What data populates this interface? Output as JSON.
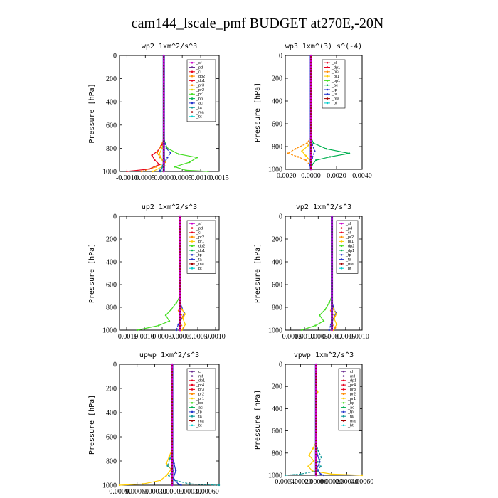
{
  "figure": {
    "title": "cam144_lscale_pmf  BUDGET at270E,-20N"
  },
  "colors": {
    "magenta": "#cc00cc",
    "purple": "#6a2d91",
    "red": "#e8001c",
    "orange": "#ff8c00",
    "gold": "#ffcc00",
    "yellow": "#e6d200",
    "lime": "#44dd22",
    "green": "#00b050",
    "blue": "#2233cc",
    "teal": "#119999",
    "darkred": "#a00000",
    "cyan": "#00cccc",
    "navy": "#000080"
  },
  "chart_data": [
    {
      "type": "line",
      "title": "wp2  1xm^2/s^3",
      "ylabel": "Pressure [hPa]",
      "xlim": [
        -0.0012,
        0.0015
      ],
      "ylim": [
        1000,
        0
      ],
      "xticks": [
        "-0.0010",
        "0.0005",
        "0.0000",
        "0.0005",
        "0.0010",
        "0.0015"
      ],
      "xtick_values": [
        -0.001,
        -0.0005,
        0.0,
        0.0005,
        0.001,
        0.0015
      ],
      "yticks": [
        0,
        200,
        400,
        600,
        800,
        1000
      ],
      "legend": [
        "_sf",
        "_pd",
        "_cl",
        "_dp2",
        "_dp1",
        "_pr3",
        "_pr2",
        "_pr1",
        "_bp",
        "_ac",
        "_ta",
        "_ma",
        "_bt"
      ],
      "legend_colors": [
        "magenta",
        "purple",
        "red",
        "orange",
        "red",
        "orange",
        "yellow",
        "lime",
        "green",
        "blue",
        "teal",
        "darkred",
        "cyan"
      ],
      "series": [
        {
          "color": "lime",
          "p": [
            700,
            750,
            800,
            850,
            880,
            920,
            960,
            990,
            1000
          ],
          "x": [
            0,
            3e-05,
            0.0001,
            0.0004,
            0.0009,
            0.0007,
            0.0003,
            0.0006,
            0.0012
          ]
        },
        {
          "color": "blue",
          "p": [
            700,
            760,
            800,
            840,
            880,
            920,
            960,
            990,
            1000
          ],
          "x": [
            0,
            3e-05,
            7e-05,
            0.00018,
            0.0001,
            3e-05,
            -3e-05,
            -0.0001,
            -0.0001
          ]
        },
        {
          "color": "red",
          "p": [
            720,
            770,
            820,
            860,
            900,
            940,
            980,
            1000
          ],
          "x": [
            0,
            -5e-05,
            -0.00015,
            -0.00032,
            -0.00025,
            -0.00012,
            -0.0004,
            -0.001
          ]
        },
        {
          "color": "orange",
          "p": [
            720,
            780,
            840,
            880,
            920,
            960,
            1000
          ],
          "x": [
            0,
            -8e-05,
            -0.00018,
            -0.0001,
            5e-05,
            -0.0002,
            -0.0006
          ]
        },
        {
          "color": "gold",
          "p": [
            750,
            800,
            850,
            900,
            950,
            1000
          ],
          "x": [
            0,
            -5e-05,
            -0.00012,
            -4e-05,
            2e-05,
            -0.0003
          ]
        },
        {
          "color": "teal",
          "p": [
            850,
            900,
            950,
            1000
          ],
          "x": [
            0,
            2e-05,
            -3e-05,
            -8e-05
          ]
        }
      ]
    },
    {
      "type": "line",
      "title": "wp3  1xm^(3) s^(-4)",
      "ylabel": "Pressure [hPa]",
      "xlim": [
        -0.002,
        0.004
      ],
      "ylim": [
        1000,
        0
      ],
      "xticks": [
        "-0.0020",
        "0.0000",
        "0.0020",
        "0.0040"
      ],
      "xtick_values": [
        -0.002,
        0.0,
        0.002,
        0.004
      ],
      "yticks": [
        0,
        200,
        400,
        600,
        800,
        1000
      ],
      "legend": [
        "_cl",
        "_dp1",
        "_pr2",
        "_pr1",
        "_bp1",
        "_ac",
        "_tp",
        "_ta",
        "_ma",
        "_bt"
      ],
      "legend_colors": [
        "red",
        "red",
        "orange",
        "gold",
        "lime",
        "green",
        "blue",
        "blue",
        "darkred",
        "cyan"
      ],
      "series": [
        {
          "color": "green",
          "p": [
            720,
            770,
            820,
            860,
            890,
            920,
            960,
            1000
          ],
          "x": [
            0,
            0.0002,
            0.0012,
            0.003,
            0.0015,
            0.0004,
            0.0001,
            0
          ]
        },
        {
          "color": "orange",
          "p": [
            720,
            770,
            820,
            860,
            890,
            920,
            960,
            1000
          ],
          "x": [
            0,
            -0.0003,
            -0.0012,
            -0.0018,
            -0.001,
            -0.0004,
            -0.0001,
            0
          ]
        },
        {
          "color": "gold",
          "p": [
            740,
            790,
            840,
            880,
            920,
            960,
            1000
          ],
          "x": [
            0,
            -0.0002,
            -0.0007,
            -0.0004,
            -0.0001,
            0,
            0
          ]
        },
        {
          "color": "blue",
          "p": [
            720,
            780,
            840,
            900,
            960,
            1000
          ],
          "x": [
            0,
            0.0001,
            0.0003,
            0.0001,
            -0.0001,
            0
          ]
        }
      ]
    },
    {
      "type": "line",
      "title": "up2  1xm^2/s^3",
      "ylabel": "Pressure [hPa]",
      "xlim": [
        -0.0017,
        0.0011
      ],
      "ylim": [
        1000,
        0
      ],
      "xticks": [
        "-0.0015",
        "0.0010",
        "0.0005",
        "0.0000",
        "0.0005",
        "0.0010"
      ],
      "xtick_values": [
        -0.0015,
        -0.001,
        -0.0005,
        0.0,
        0.0005,
        0.001
      ],
      "yticks": [
        0,
        200,
        400,
        600,
        800,
        1000
      ],
      "legend": [
        "_sf",
        "_pd",
        "_cl",
        "_pr2",
        "_pr1",
        "_dp2",
        "_dp1",
        "_tp",
        "_ta",
        "_ma",
        "_bt"
      ],
      "legend_colors": [
        "magenta",
        "red",
        "red",
        "orange",
        "gold",
        "lime",
        "green",
        "blue",
        "blue",
        "darkred",
        "cyan"
      ],
      "series": [
        {
          "color": "lime",
          "p": [
            700,
            760,
            820,
            870,
            920,
            960,
            1000
          ],
          "x": [
            0,
            -0.0001,
            -0.00025,
            -0.0004,
            -0.0003,
            -0.0006,
            -0.0012
          ]
        },
        {
          "color": "blue",
          "p": [
            750,
            800,
            850,
            900,
            950,
            1000
          ],
          "x": [
            0,
            5e-05,
            0.00012,
            5e-05,
            -5e-05,
            -0.0001
          ]
        },
        {
          "color": "gold",
          "p": [
            780,
            820,
            860,
            900,
            950,
            1000
          ],
          "x": [
            0,
            6e-05,
            0.00014,
            8e-05,
            0.00015,
            5e-05
          ]
        },
        {
          "color": "orange",
          "p": [
            780,
            830,
            880,
            930,
            980,
            1000
          ],
          "x": [
            0,
            -4e-05,
            8e-05,
            -2e-05,
            0.0001,
            0
          ]
        }
      ]
    },
    {
      "type": "line",
      "title": "vp2  1xm^2/s^3",
      "ylabel": "Pressure [hPa]",
      "xlim": [
        -0.0017,
        0.0011
      ],
      "ylim": [
        1000,
        0
      ],
      "xticks": [
        "-0.0015",
        "0.0010",
        "0.0005",
        "0.0000",
        "0.0005",
        "0.0010"
      ],
      "xtick_values": [
        -0.0015,
        -0.001,
        -0.0005,
        0.0,
        0.0005,
        0.001
      ],
      "yticks": [
        0,
        200,
        400,
        600,
        800,
        1000
      ],
      "legend": [
        "_sf",
        "_pd",
        "_cl",
        "_pr2",
        "_pr1",
        "_dp2",
        "_dp1",
        "_tp",
        "_ta",
        "_ma",
        "_bt"
      ],
      "legend_colors": [
        "magenta",
        "red",
        "red",
        "orange",
        "gold",
        "lime",
        "green",
        "blue",
        "blue",
        "darkred",
        "cyan"
      ],
      "series": [
        {
          "color": "lime",
          "p": [
            700,
            760,
            820,
            870,
            920,
            960,
            1000
          ],
          "x": [
            0,
            -0.0001,
            -0.00025,
            -0.00045,
            -0.0003,
            -0.0006,
            -0.0011
          ]
        },
        {
          "color": "blue",
          "p": [
            750,
            800,
            850,
            900,
            950,
            1000
          ],
          "x": [
            0,
            6e-05,
            0.00014,
            6e-05,
            -4e-05,
            -0.0001
          ]
        },
        {
          "color": "gold",
          "p": [
            780,
            820,
            860,
            900,
            950,
            1000
          ],
          "x": [
            0,
            6e-05,
            0.00016,
            8e-05,
            0.00017,
            5e-05
          ]
        },
        {
          "color": "orange",
          "p": [
            780,
            830,
            880,
            930,
            980,
            1000
          ],
          "x": [
            0,
            -4e-05,
            0.0001,
            -2e-05,
            0.00012,
            0
          ]
        }
      ]
    },
    {
      "type": "line",
      "title": "upwp  1xm^2/s^3",
      "ylabel": "Pressure [hPa]",
      "xlim": [
        -0.0009,
        0.0008
      ],
      "ylim": [
        1000,
        0
      ],
      "xticks": [
        "-0.00090",
        "0.00060",
        "0.00030",
        "0.00000",
        "0.00030",
        "0.00060"
      ],
      "xtick_values": [
        -0.0009,
        -0.0006,
        -0.0003,
        0.0,
        0.0003,
        0.0006
      ],
      "yticks": [
        0,
        200,
        400,
        600,
        800,
        1000
      ],
      "legend": [
        "_cl",
        "_mfl",
        "_dp1",
        "_pr4",
        "_pr3",
        "_pr2",
        "_pr1",
        "_bp",
        "_ac",
        "_tp",
        "_ta",
        "_ma",
        "_bt"
      ],
      "legend_colors": [
        "purple",
        "purple",
        "red",
        "red",
        "red",
        "orange",
        "gold",
        "lime",
        "green",
        "blue",
        "teal",
        "darkred",
        "cyan"
      ],
      "series": [
        {
          "color": "gold",
          "p": [
            700,
            760,
            820,
            870,
            920,
            960,
            990,
            1000
          ],
          "x": [
            0,
            -5e-05,
            -0.0001,
            -2e-05,
            -0.0001,
            -0.0002,
            -0.0005,
            -0.0009
          ]
        },
        {
          "color": "teal",
          "p": [
            720,
            780,
            840,
            880,
            920,
            960,
            990,
            1000
          ],
          "x": [
            0,
            -4e-05,
            -8e-05,
            2e-05,
            -6e-05,
            5e-05,
            0.0003,
            0.0008
          ]
        },
        {
          "color": "blue",
          "p": [
            760,
            820,
            880,
            940,
            990,
            1000
          ],
          "x": [
            0,
            3e-05,
            6e-05,
            2e-05,
            0.0001,
            0.00015
          ]
        }
      ]
    },
    {
      "type": "line",
      "title": "vpwp  1xm^2/s^3",
      "ylabel": "Pressure [hPa]",
      "xlim": [
        -0.0004,
        0.0006
      ],
      "ylim": [
        1000,
        0
      ],
      "xticks": [
        "-0.00040",
        "0.00020",
        "0.00000",
        "0.00020",
        "0.00040",
        "0.00060"
      ],
      "xtick_values": [
        -0.0004,
        -0.0002,
        0.0,
        0.0002,
        0.0004,
        0.0006
      ],
      "yticks": [
        0,
        200,
        400,
        600,
        800,
        1000
      ],
      "legend": [
        "_cl",
        "_mfl",
        "_dp1",
        "_pr4",
        "_pr3",
        "_pr2",
        "_pr1",
        "_bp",
        "_ac",
        "_tp",
        "_ta",
        "_ma",
        "_bt"
      ],
      "legend_colors": [
        "purple",
        "purple",
        "red",
        "red",
        "red",
        "orange",
        "gold",
        "lime",
        "green",
        "blue",
        "teal",
        "darkred",
        "cyan"
      ],
      "series": [
        {
          "color": "gold",
          "p": [
            200,
            250,
            300,
            700,
            760,
            820,
            870,
            920,
            960,
            990,
            1000
          ],
          "x": [
            0,
            2e-05,
            0,
            0,
            -4e-05,
            -9e-05,
            -3e-05,
            -0.0001,
            -5e-05,
            0.0002,
            0.0006
          ]
        },
        {
          "color": "teal",
          "p": [
            720,
            780,
            840,
            880,
            920,
            960,
            990,
            1000
          ],
          "x": [
            0,
            3e-05,
            7e-05,
            2e-05,
            6e-05,
            2e-05,
            -0.0002,
            -0.0004
          ]
        },
        {
          "color": "blue",
          "p": [
            760,
            820,
            880,
            940,
            990,
            1000
          ],
          "x": [
            0,
            2e-05,
            5e-05,
            1e-05,
            6e-05,
            0.0001
          ]
        }
      ]
    }
  ]
}
